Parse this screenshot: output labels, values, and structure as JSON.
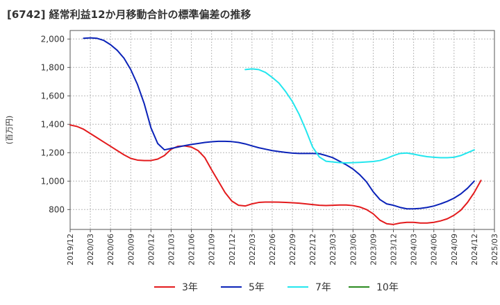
{
  "chart_data": {
    "type": "line",
    "title": "[6742]  経常利益12か月移動合計の標準偏差の推移",
    "ylabel": "(百万円)",
    "xlabel": "",
    "ylim": [
      660,
      2060
    ],
    "y_ticks": [
      800,
      1000,
      1200,
      1400,
      1600,
      1800,
      2000
    ],
    "y_tick_labels": [
      "800",
      "1,000",
      "1,200",
      "1,400",
      "1,600",
      "1,800",
      "2,000"
    ],
    "x_ticks": [
      "2019/12",
      "2020/03",
      "2020/06",
      "2020/09",
      "2020/12",
      "2021/03",
      "2021/06",
      "2021/09",
      "2021/12",
      "2022/03",
      "2022/06",
      "2022/09",
      "2022/12",
      "2023/03",
      "2023/06",
      "2023/09",
      "2023/12",
      "2024/03",
      "2024/06",
      "2024/09",
      "2024/12",
      "2025/03"
    ],
    "grid": true,
    "legend_position": "bottom",
    "series": [
      {
        "name": "3年",
        "color": "#e31a1c",
        "start": "2019/12",
        "values": [
          1395,
          1385,
          1365,
          1335,
          1305,
          1275,
          1245,
          1215,
          1185,
          1160,
          1148,
          1145,
          1145,
          1155,
          1180,
          1225,
          1245,
          1248,
          1240,
          1215,
          1165,
          1080,
          1000,
          920,
          860,
          830,
          825,
          840,
          850,
          853,
          853,
          852,
          850,
          848,
          845,
          840,
          835,
          830,
          828,
          830,
          832,
          832,
          828,
          818,
          800,
          770,
          725,
          700,
          695,
          705,
          710,
          710,
          705,
          705,
          710,
          720,
          735,
          760,
          795,
          850,
          920,
          1005
        ]
      },
      {
        "name": "5年",
        "color": "#0a22b8",
        "start": "2020/02",
        "values": [
          2005,
          2008,
          2005,
          1990,
          1960,
          1920,
          1865,
          1785,
          1680,
          1545,
          1375,
          1265,
          1220,
          1230,
          1240,
          1250,
          1258,
          1265,
          1272,
          1277,
          1280,
          1280,
          1278,
          1272,
          1262,
          1248,
          1235,
          1225,
          1215,
          1208,
          1202,
          1197,
          1195,
          1195,
          1195,
          1193,
          1180,
          1165,
          1140,
          1115,
          1085,
          1045,
          995,
          925,
          870,
          840,
          830,
          815,
          805,
          805,
          808,
          815,
          825,
          840,
          858,
          880,
          910,
          950,
          1000
        ]
      },
      {
        "name": "7年",
        "color": "#22e6ee",
        "start": "2022/02",
        "values": [
          1785,
          1790,
          1785,
          1765,
          1730,
          1690,
          1630,
          1560,
          1470,
          1360,
          1240,
          1170,
          1140,
          1135,
          1130,
          1128,
          1130,
          1132,
          1135,
          1138,
          1145,
          1160,
          1180,
          1195,
          1198,
          1190,
          1180,
          1172,
          1168,
          1165,
          1165,
          1168,
          1180,
          1200,
          1220
        ]
      },
      {
        "name": "10年",
        "color": "#2a8a1f",
        "start": "2019/12",
        "values": []
      }
    ]
  }
}
